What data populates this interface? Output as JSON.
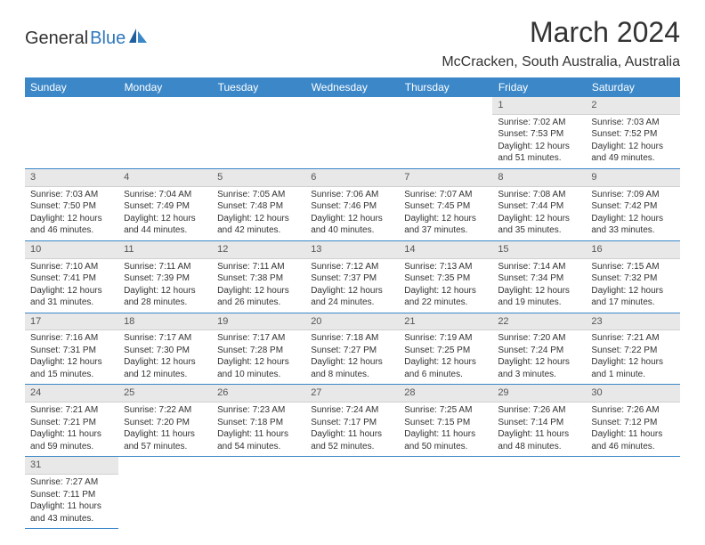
{
  "logo": {
    "word1": "General",
    "word2": "Blue"
  },
  "title": "March 2024",
  "location": "McCracken, South Australia, Australia",
  "colors": {
    "header_bg": "#3b87c8",
    "header_fg": "#ffffff",
    "daynum_bg": "#e8e8e8",
    "rule": "#3b87c8",
    "text": "#333333",
    "logo_blue": "#2f77bb"
  },
  "dow": [
    "Sunday",
    "Monday",
    "Tuesday",
    "Wednesday",
    "Thursday",
    "Friday",
    "Saturday"
  ],
  "weeks": [
    [
      null,
      null,
      null,
      null,
      null,
      {
        "n": "1",
        "sr": "Sunrise: 7:02 AM",
        "ss": "Sunset: 7:53 PM",
        "dl": "Daylight: 12 hours and 51 minutes."
      },
      {
        "n": "2",
        "sr": "Sunrise: 7:03 AM",
        "ss": "Sunset: 7:52 PM",
        "dl": "Daylight: 12 hours and 49 minutes."
      }
    ],
    [
      {
        "n": "3",
        "sr": "Sunrise: 7:03 AM",
        "ss": "Sunset: 7:50 PM",
        "dl": "Daylight: 12 hours and 46 minutes."
      },
      {
        "n": "4",
        "sr": "Sunrise: 7:04 AM",
        "ss": "Sunset: 7:49 PM",
        "dl": "Daylight: 12 hours and 44 minutes."
      },
      {
        "n": "5",
        "sr": "Sunrise: 7:05 AM",
        "ss": "Sunset: 7:48 PM",
        "dl": "Daylight: 12 hours and 42 minutes."
      },
      {
        "n": "6",
        "sr": "Sunrise: 7:06 AM",
        "ss": "Sunset: 7:46 PM",
        "dl": "Daylight: 12 hours and 40 minutes."
      },
      {
        "n": "7",
        "sr": "Sunrise: 7:07 AM",
        "ss": "Sunset: 7:45 PM",
        "dl": "Daylight: 12 hours and 37 minutes."
      },
      {
        "n": "8",
        "sr": "Sunrise: 7:08 AM",
        "ss": "Sunset: 7:44 PM",
        "dl": "Daylight: 12 hours and 35 minutes."
      },
      {
        "n": "9",
        "sr": "Sunrise: 7:09 AM",
        "ss": "Sunset: 7:42 PM",
        "dl": "Daylight: 12 hours and 33 minutes."
      }
    ],
    [
      {
        "n": "10",
        "sr": "Sunrise: 7:10 AM",
        "ss": "Sunset: 7:41 PM",
        "dl": "Daylight: 12 hours and 31 minutes."
      },
      {
        "n": "11",
        "sr": "Sunrise: 7:11 AM",
        "ss": "Sunset: 7:39 PM",
        "dl": "Daylight: 12 hours and 28 minutes."
      },
      {
        "n": "12",
        "sr": "Sunrise: 7:11 AM",
        "ss": "Sunset: 7:38 PM",
        "dl": "Daylight: 12 hours and 26 minutes."
      },
      {
        "n": "13",
        "sr": "Sunrise: 7:12 AM",
        "ss": "Sunset: 7:37 PM",
        "dl": "Daylight: 12 hours and 24 minutes."
      },
      {
        "n": "14",
        "sr": "Sunrise: 7:13 AM",
        "ss": "Sunset: 7:35 PM",
        "dl": "Daylight: 12 hours and 22 minutes."
      },
      {
        "n": "15",
        "sr": "Sunrise: 7:14 AM",
        "ss": "Sunset: 7:34 PM",
        "dl": "Daylight: 12 hours and 19 minutes."
      },
      {
        "n": "16",
        "sr": "Sunrise: 7:15 AM",
        "ss": "Sunset: 7:32 PM",
        "dl": "Daylight: 12 hours and 17 minutes."
      }
    ],
    [
      {
        "n": "17",
        "sr": "Sunrise: 7:16 AM",
        "ss": "Sunset: 7:31 PM",
        "dl": "Daylight: 12 hours and 15 minutes."
      },
      {
        "n": "18",
        "sr": "Sunrise: 7:17 AM",
        "ss": "Sunset: 7:30 PM",
        "dl": "Daylight: 12 hours and 12 minutes."
      },
      {
        "n": "19",
        "sr": "Sunrise: 7:17 AM",
        "ss": "Sunset: 7:28 PM",
        "dl": "Daylight: 12 hours and 10 minutes."
      },
      {
        "n": "20",
        "sr": "Sunrise: 7:18 AM",
        "ss": "Sunset: 7:27 PM",
        "dl": "Daylight: 12 hours and 8 minutes."
      },
      {
        "n": "21",
        "sr": "Sunrise: 7:19 AM",
        "ss": "Sunset: 7:25 PM",
        "dl": "Daylight: 12 hours and 6 minutes."
      },
      {
        "n": "22",
        "sr": "Sunrise: 7:20 AM",
        "ss": "Sunset: 7:24 PM",
        "dl": "Daylight: 12 hours and 3 minutes."
      },
      {
        "n": "23",
        "sr": "Sunrise: 7:21 AM",
        "ss": "Sunset: 7:22 PM",
        "dl": "Daylight: 12 hours and 1 minute."
      }
    ],
    [
      {
        "n": "24",
        "sr": "Sunrise: 7:21 AM",
        "ss": "Sunset: 7:21 PM",
        "dl": "Daylight: 11 hours and 59 minutes."
      },
      {
        "n": "25",
        "sr": "Sunrise: 7:22 AM",
        "ss": "Sunset: 7:20 PM",
        "dl": "Daylight: 11 hours and 57 minutes."
      },
      {
        "n": "26",
        "sr": "Sunrise: 7:23 AM",
        "ss": "Sunset: 7:18 PM",
        "dl": "Daylight: 11 hours and 54 minutes."
      },
      {
        "n": "27",
        "sr": "Sunrise: 7:24 AM",
        "ss": "Sunset: 7:17 PM",
        "dl": "Daylight: 11 hours and 52 minutes."
      },
      {
        "n": "28",
        "sr": "Sunrise: 7:25 AM",
        "ss": "Sunset: 7:15 PM",
        "dl": "Daylight: 11 hours and 50 minutes."
      },
      {
        "n": "29",
        "sr": "Sunrise: 7:26 AM",
        "ss": "Sunset: 7:14 PM",
        "dl": "Daylight: 11 hours and 48 minutes."
      },
      {
        "n": "30",
        "sr": "Sunrise: 7:26 AM",
        "ss": "Sunset: 7:12 PM",
        "dl": "Daylight: 11 hours and 46 minutes."
      }
    ],
    [
      {
        "n": "31",
        "sr": "Sunrise: 7:27 AM",
        "ss": "Sunset: 7:11 PM",
        "dl": "Daylight: 11 hours and 43 minutes."
      },
      null,
      null,
      null,
      null,
      null,
      null
    ]
  ]
}
